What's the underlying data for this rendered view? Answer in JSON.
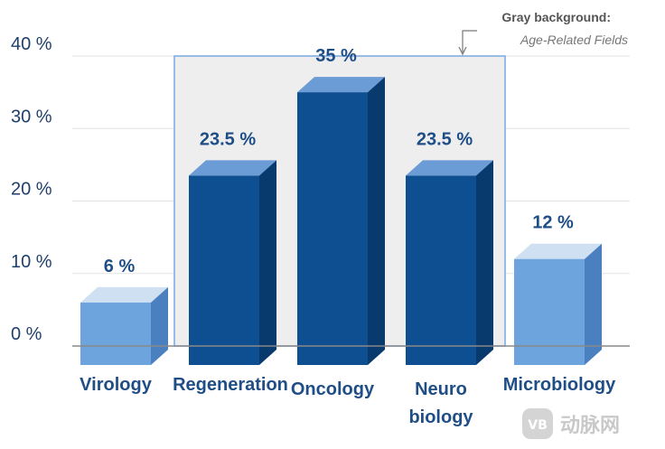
{
  "chart_data": {
    "type": "bar",
    "categories": [
      "Virology",
      "Regeneration",
      "Oncology",
      "Neuro biology",
      "Microbiology"
    ],
    "category_lines": [
      [
        "Virology"
      ],
      [
        "Regeneration"
      ],
      [
        "Oncology"
      ],
      [
        "Neuro",
        "biology"
      ],
      [
        "Microbiology"
      ]
    ],
    "values": [
      6,
      23.5,
      35,
      23.5,
      12
    ],
    "value_labels": [
      "6 %",
      "23.5 %",
      "35 %",
      "23.5 %",
      "12 %"
    ],
    "bar_styles": [
      "light",
      "dark",
      "dark",
      "dark",
      "light"
    ],
    "yticks": [
      "0 %",
      "10 %",
      "20 %",
      "30 %",
      "40 %"
    ],
    "ylim": [
      0,
      40
    ],
    "grid": true,
    "highlight_categories": [
      "Regeneration",
      "Oncology",
      "Neuro biology"
    ],
    "annotation": {
      "title": "Gray background:",
      "subtitle": "Age-Related Fields"
    },
    "colors": {
      "dark_front": "#0e4f92",
      "dark_top": "#6c9cd6",
      "dark_side": "#093a6e",
      "light_front": "#6ea4dd",
      "light_top": "#cfe0f2",
      "light_side": "#4a80c0",
      "highlight_fill": "#eeeeee",
      "highlight_stroke": "#7aa8e0",
      "grid": "#e3e3e3",
      "baseline": "#888888"
    }
  },
  "watermark": {
    "icon_text": "VB",
    "text": "动脉网"
  }
}
